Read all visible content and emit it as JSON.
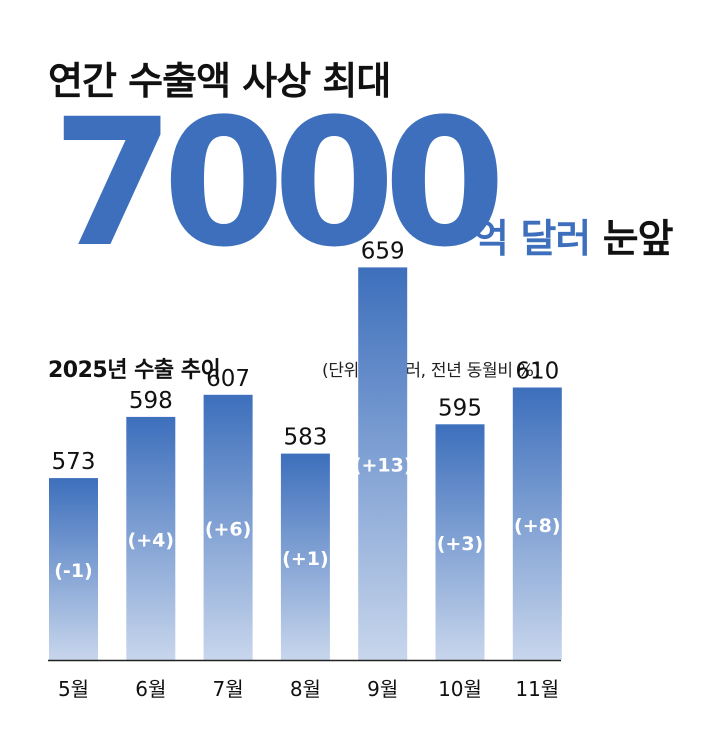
{
  "header": {
    "headline": "연간 수출액 사상 최대",
    "big_number": "7000",
    "unit_blue": "억 달러",
    "unit_black": "눈앞"
  },
  "colors": {
    "accent": "#3d6fbc",
    "bar_top": "#3d6fbc",
    "bar_bottom": "#c8d6ec",
    "text": "#111111",
    "axis": "#222222"
  },
  "chart_data": {
    "type": "bar",
    "title": "2025년 수출 추이",
    "unit_note": "(단위: 억 달러, 전년 동월비 %)",
    "categories": [
      "5월",
      "6월",
      "7월",
      "8월",
      "9월",
      "10월",
      "11월"
    ],
    "values": [
      573,
      598,
      607,
      583,
      659,
      595,
      610
    ],
    "change_labels": [
      "(-1)",
      "(+4)",
      "(+6)",
      "(+1)",
      "(+13)",
      "(+3)",
      "(+8)"
    ],
    "grid": false,
    "legend": "none"
  }
}
